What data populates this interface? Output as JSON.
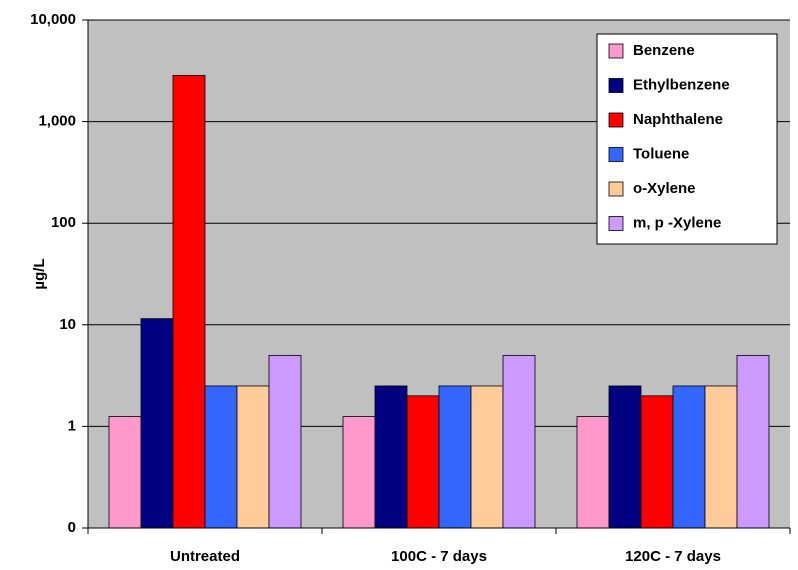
{
  "chart_data": {
    "type": "bar",
    "y_label": "µg/L",
    "categories": [
      "Untreated",
      "100C - 7 days",
      "120C - 7 days"
    ],
    "series": [
      {
        "name": "Benzene",
        "color": "#ff99cc",
        "values": [
          1.25,
          1.25,
          1.25
        ]
      },
      {
        "name": "Ethylbenzene",
        "color": "#000080",
        "values": [
          11.5,
          2.5,
          2.5
        ]
      },
      {
        "name": "Naphthalene",
        "color": "#ff0000",
        "values": [
          2850,
          2,
          2
        ]
      },
      {
        "name": "Toluene",
        "color": "#3366ff",
        "values": [
          2.5,
          2.5,
          2.5
        ]
      },
      {
        "name": "o-Xylene",
        "color": "#ffcc99",
        "values": [
          2.5,
          2.5,
          2.5
        ]
      },
      {
        "name": "m, p -Xylene",
        "color": "#cc99ff",
        "values": [
          5,
          5,
          5
        ]
      }
    ],
    "log_scale": true,
    "ylim": [
      0.1,
      10000
    ],
    "yticks": [
      {
        "value": 0.1,
        "label": "0"
      },
      1,
      10,
      100,
      {
        "value": 1000,
        "label": "1,000"
      },
      {
        "value": 10000,
        "label": "10,000"
      }
    ],
    "grid": true,
    "legend": "upper right",
    "plot_background": "#c0c0c0"
  }
}
